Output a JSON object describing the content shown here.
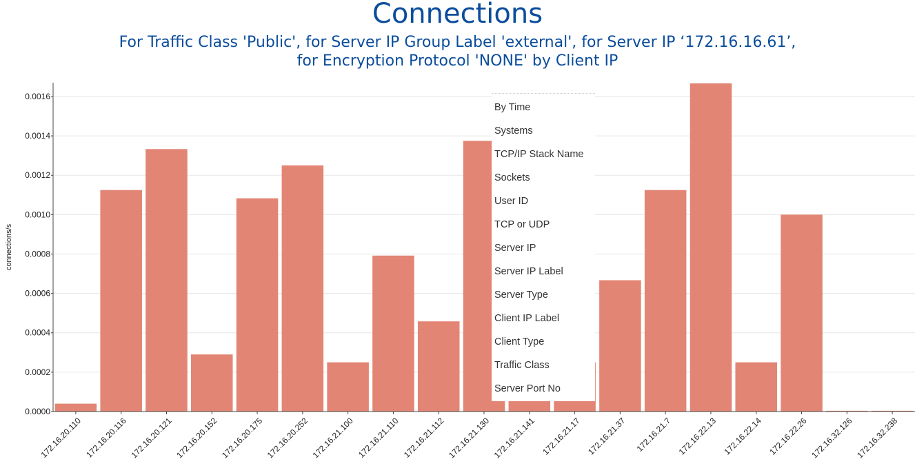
{
  "colors": {
    "bar": "#e38574",
    "title": "#0b4d9c",
    "grid": "#e6e6e6"
  },
  "chart_data": {
    "type": "bar",
    "title": "Connections",
    "subtitle": [
      "For Traffic Class 'Public', for Server IP Group Label 'external', for Server IP ‘172.16.16.61’,",
      "for Encryption Protocol 'NONE' by Client IP"
    ],
    "xlabel": "",
    "ylabel": "connections/s",
    "ylim": [
      0,
      0.00167
    ],
    "yticks": [
      "0.0000",
      "0.0002",
      "0.0004",
      "0.0006",
      "0.0008",
      "0.0010",
      "0.0012",
      "0.0014",
      "0.0016"
    ],
    "grid": true,
    "categories": [
      "172.16.20.110",
      "172.16.20.116",
      "172.16.20.121",
      "172.16.20.152",
      "172.16.20.175",
      "172.16.20.252",
      "172.16.21.100",
      "172.16.21.110",
      "172.16.21.112",
      "172.16.21.130",
      "172.16.21.141",
      "172.16.21.17",
      "172.16.21.37",
      "172.16.21.7",
      "172.16.22.13",
      "172.16.22.14",
      "172.16.22.26",
      "172.16.32.126",
      "172.16.32.238"
    ],
    "values": [
      4e-05,
      0.001125,
      0.001333,
      0.00029,
      0.001083,
      0.00125,
      0.00025,
      0.000792,
      0.000458,
      0.001375,
      6e-05,
      0.00025,
      0.000667,
      0.001125,
      0.001667,
      0.00025,
      0.001,
      4e-06,
      4e-06
    ]
  },
  "context_menu": {
    "items": [
      "By Time",
      "Systems",
      "TCP/IP Stack Name",
      "Sockets",
      "User ID",
      "TCP or UDP",
      "Server IP",
      "Server IP Label",
      "Server Type",
      "Client IP Label",
      "Client Type",
      "Traffic Class",
      "Server Port No"
    ]
  }
}
